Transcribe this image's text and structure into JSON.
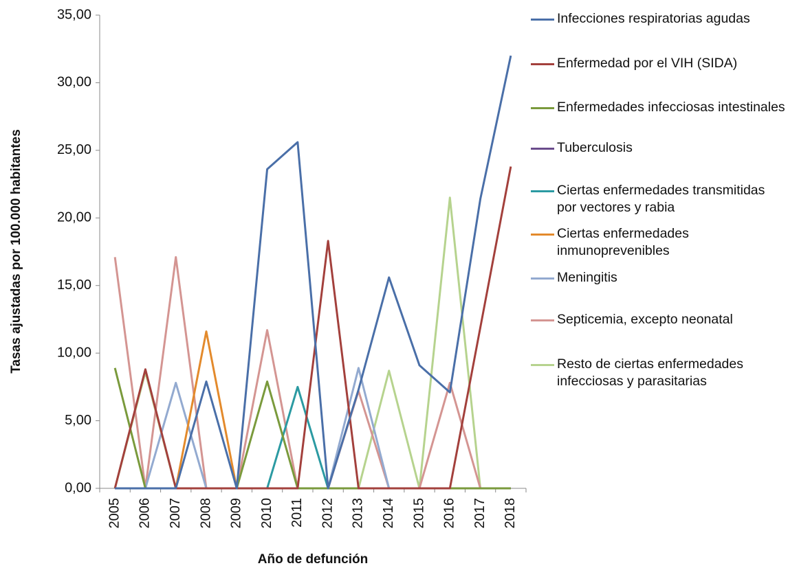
{
  "chart_data": {
    "type": "line",
    "xlabel": "Año de defunción",
    "ylabel": "Tasas ajustadas por 100.000 habitantes",
    "categories": [
      "2005",
      "2006",
      "2007",
      "2008",
      "2009",
      "2010",
      "2011",
      "2012",
      "2013",
      "2014",
      "2015",
      "2016",
      "2017",
      "2018"
    ],
    "ylim": [
      0,
      35
    ],
    "yticks": [
      {
        "value": 0,
        "label": "0,00"
      },
      {
        "value": 5,
        "label": "5,00"
      },
      {
        "value": 10,
        "label": "10,00"
      },
      {
        "value": 15,
        "label": "15,00"
      },
      {
        "value": 20,
        "label": "20,00"
      },
      {
        "value": 25,
        "label": "25,00"
      },
      {
        "value": 30,
        "label": "30,00"
      },
      {
        "value": 35,
        "label": "35,00"
      }
    ],
    "legend": "right",
    "series": [
      {
        "name": "Infecciones respiratorias agudas",
        "color": "#4a6fa8",
        "values": [
          0,
          0,
          0,
          7.9,
          0,
          23.6,
          25.6,
          0,
          7.3,
          15.6,
          9.1,
          7.1,
          21.4,
          32.0
        ]
      },
      {
        "name": "Enfermedad por el VIH (SIDA)",
        "color": "#a3403c",
        "values": [
          0,
          8.8,
          0,
          0,
          0,
          0,
          0,
          18.3,
          0,
          0,
          0,
          0,
          11.9,
          23.8
        ]
      },
      {
        "name": "Enfermedades infecciosas intestinales",
        "color": "#7a9a3c",
        "values": [
          8.9,
          0,
          0,
          0,
          0,
          7.9,
          0,
          0,
          0,
          0,
          0,
          0,
          0,
          0
        ]
      },
      {
        "name": "Tuberculosis",
        "color": "#6a4c8c",
        "values": [
          0,
          0,
          0,
          0,
          0,
          0,
          0,
          0,
          0,
          0,
          0,
          0,
          0,
          0
        ]
      },
      {
        "name": "Ciertas enfermedades transmitidas por vectores y rabia",
        "color": "#2b9aa2",
        "values": [
          0,
          0,
          0,
          0,
          0,
          0,
          7.5,
          0,
          0,
          0,
          0,
          0,
          0,
          0
        ]
      },
      {
        "name": "Ciertas enfermedades inmunoprevenibles",
        "color": "#e38a2c",
        "values": [
          0,
          0,
          0,
          11.6,
          0,
          0,
          0,
          0,
          0,
          0,
          0,
          0,
          0,
          0
        ]
      },
      {
        "name": "Meningitis",
        "color": "#93aad0",
        "values": [
          0,
          0,
          7.8,
          0,
          0,
          0,
          0,
          0,
          8.9,
          0,
          0,
          0,
          0,
          0
        ]
      },
      {
        "name": "Septicemia, excepto neonatal",
        "color": "#d49592",
        "values": [
          17.1,
          0,
          17.1,
          0,
          0,
          11.7,
          0,
          0,
          7.2,
          0,
          0,
          7.8,
          0,
          0
        ]
      },
      {
        "name": "Resto de ciertas enfermedades infecciosas y parasitarias",
        "color": "#b6d38e",
        "values": [
          0,
          8.6,
          0,
          0,
          0,
          0,
          0,
          0,
          0,
          8.7,
          0,
          21.5,
          0,
          0
        ]
      }
    ]
  }
}
